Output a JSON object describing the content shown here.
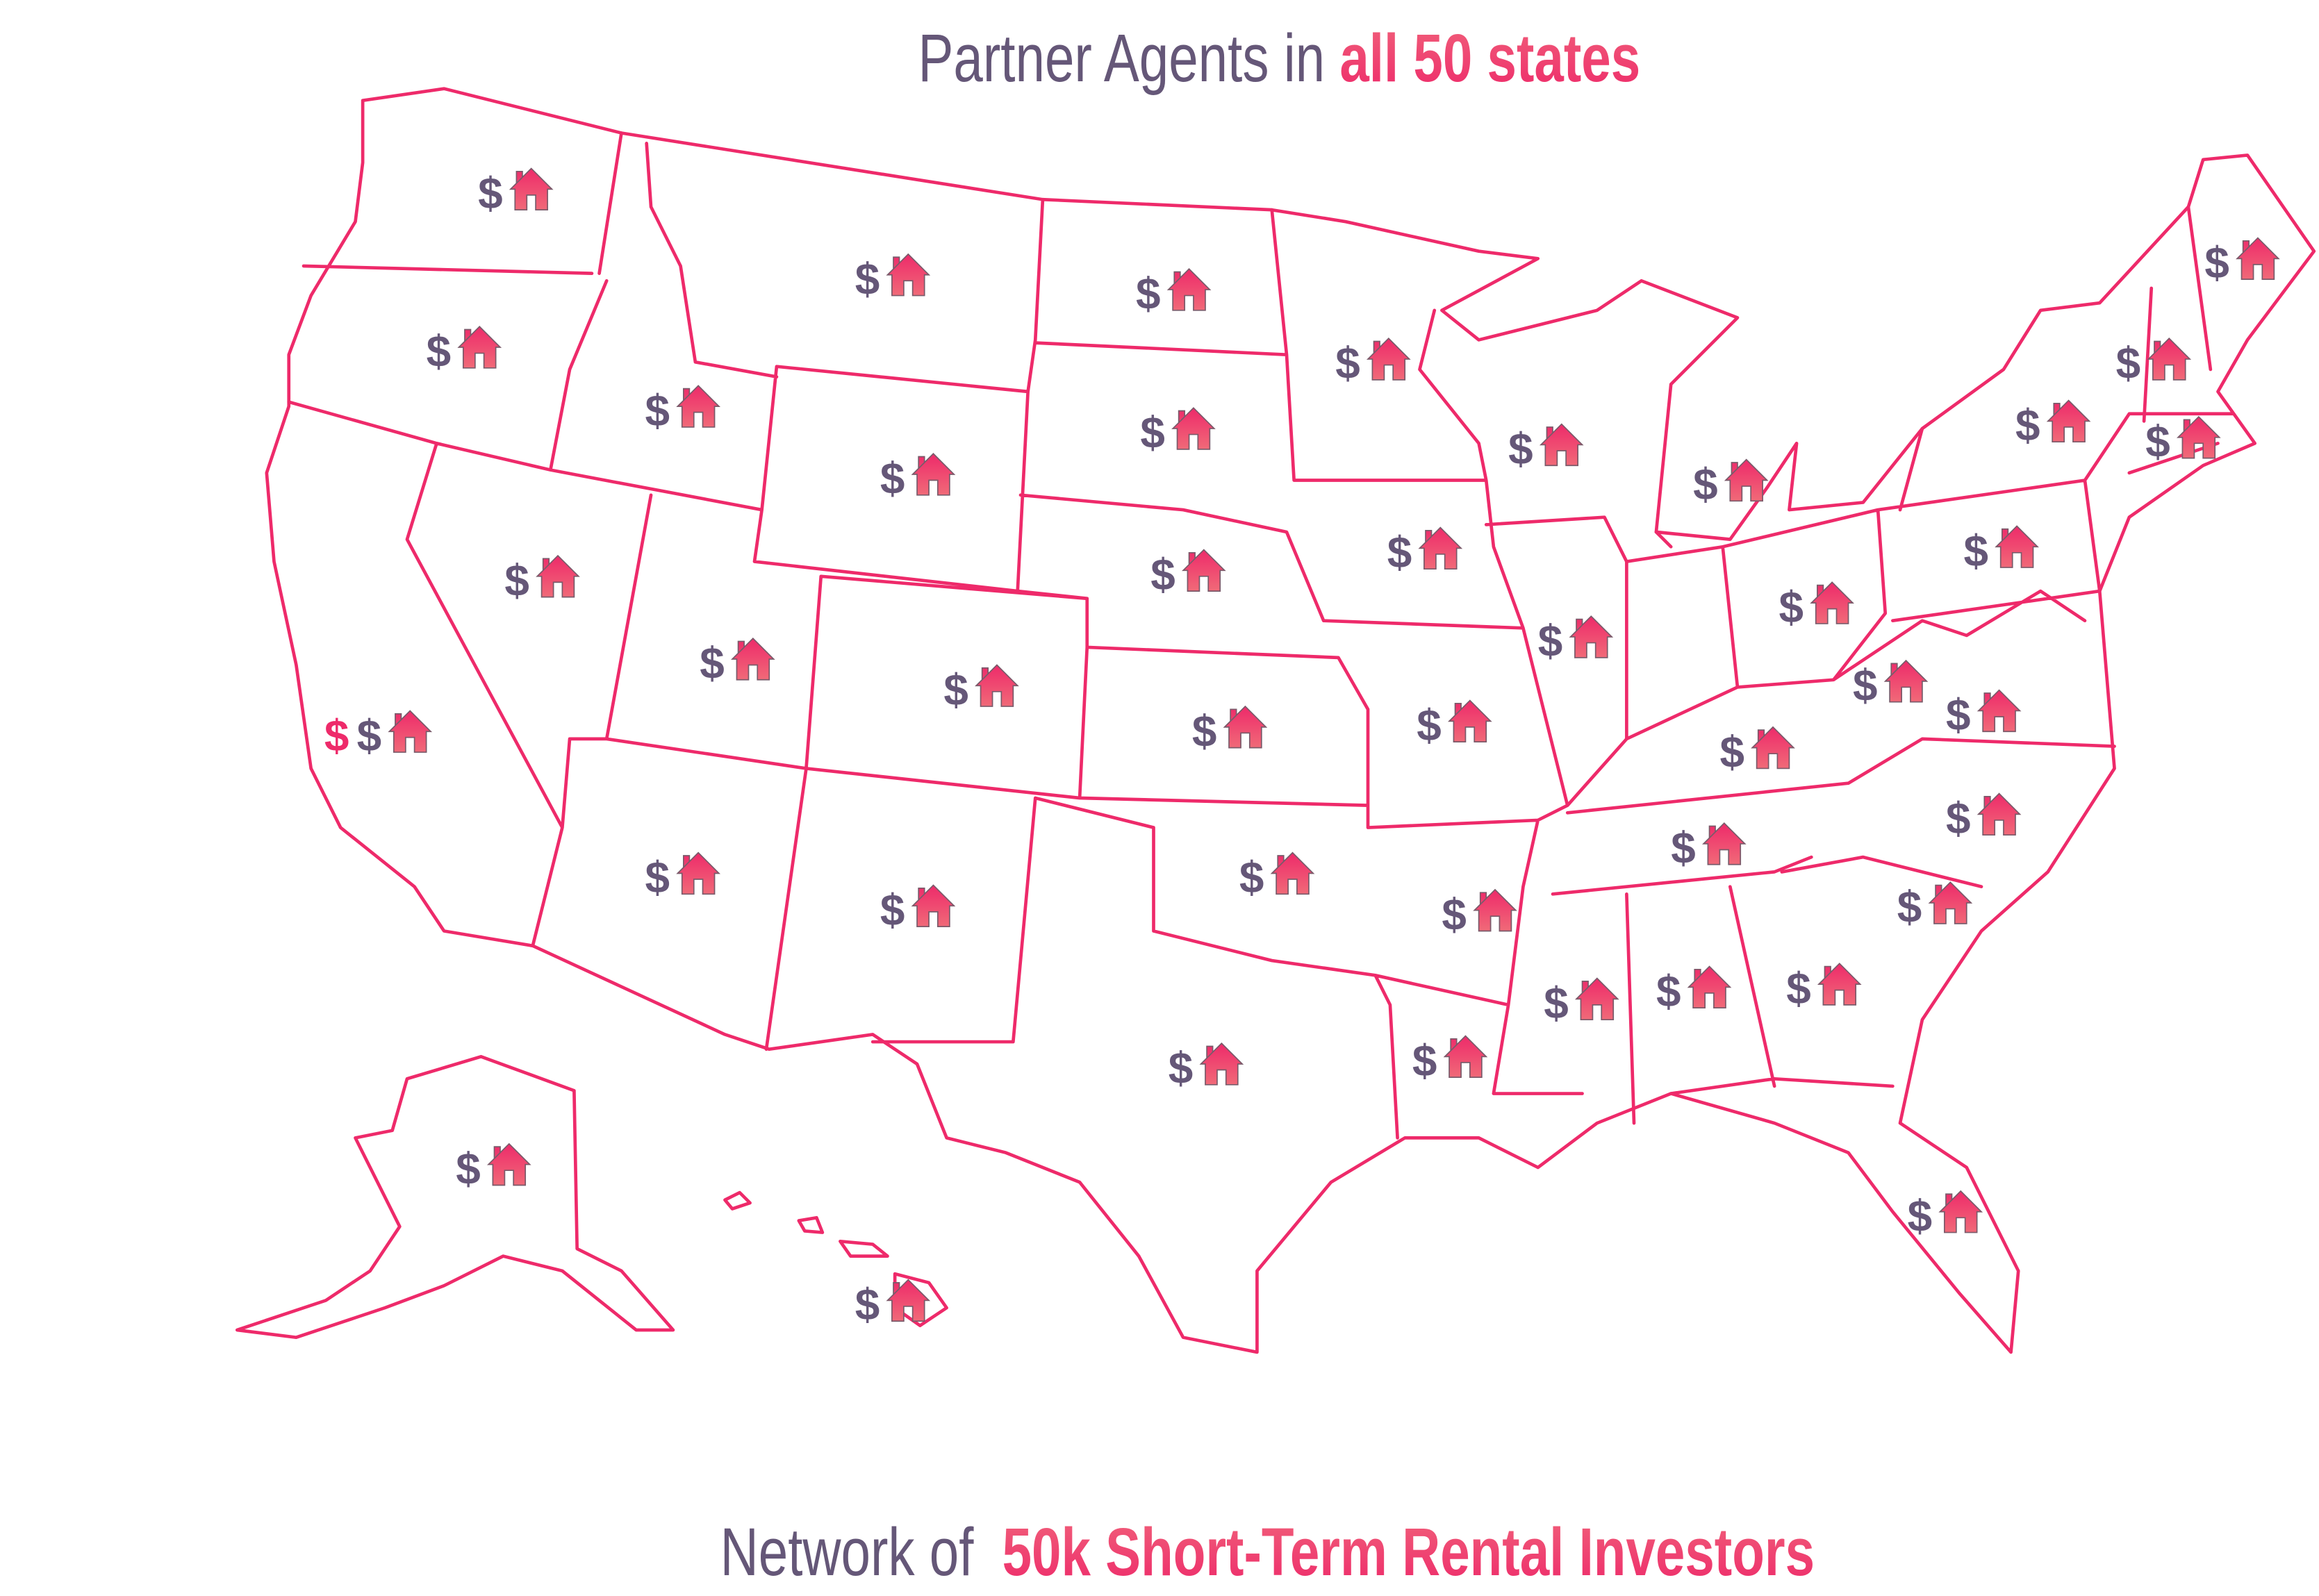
{
  "header": {
    "title_prefix": "Partner Agents in ",
    "title_highlight": "all 50 states"
  },
  "footer": {
    "text_prefix": "Network of ",
    "text_highlight": "50k Short-Term Rental Investors"
  },
  "marker": {
    "dollar_symbol": "$",
    "icon": "house-icon"
  },
  "colors": {
    "primary_text": "#655778",
    "accent": "#ee2a6a",
    "accent_light": "#f0607a",
    "map_stroke": "#ee2a6a"
  }
}
